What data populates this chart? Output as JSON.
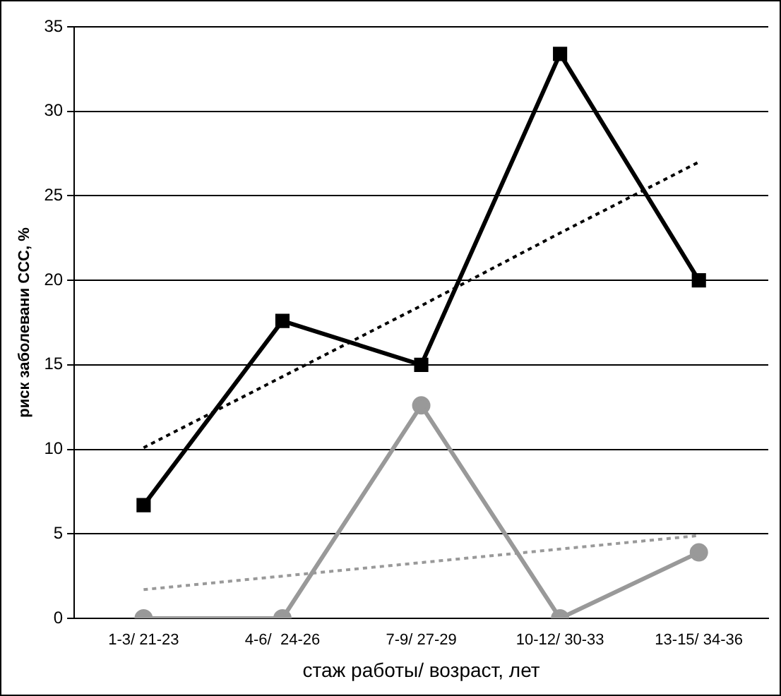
{
  "chart_data": {
    "type": "line",
    "xlabel": "стаж работы/ возраст, лет",
    "ylabel": "риск заболевани ССС, %",
    "categories": [
      "1-3/ 21-23",
      "4-6/  24-26",
      "7-9/ 27-29",
      "10-12/ 30-33",
      "13-15/ 34-36"
    ],
    "ylim": [
      0,
      35
    ],
    "yticks": [
      0,
      5,
      10,
      15,
      20,
      25,
      30,
      35
    ],
    "grid": "y",
    "legend": false,
    "series": [
      {
        "color": "#000000",
        "marker": "square",
        "line_style": "solid",
        "values": [
          6.7,
          17.6,
          15.0,
          33.4,
          20.0
        ]
      },
      {
        "color": "#999999",
        "marker": "circle",
        "line_style": "solid",
        "values": [
          0,
          0,
          12.6,
          0,
          3.9
        ]
      },
      {
        "color": "#000000",
        "marker": "none",
        "line_style": "dotted",
        "values": [
          10.1,
          14.3,
          18.5,
          22.8,
          27.0
        ]
      },
      {
        "color": "#999999",
        "marker": "none",
        "line_style": "dotted",
        "values": [
          1.7,
          2.5,
          3.3,
          4.1,
          4.9
        ]
      }
    ]
  }
}
